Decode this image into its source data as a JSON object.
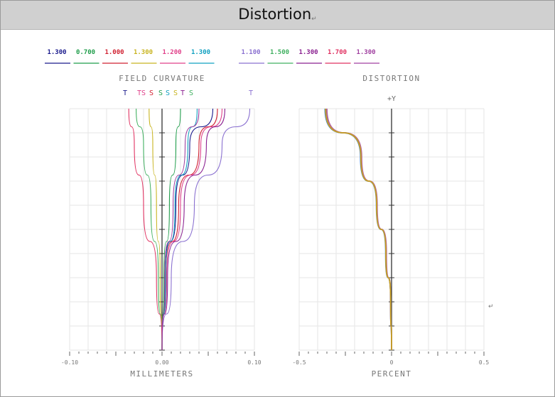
{
  "page": {
    "title": "Distortion",
    "para_mark": "↵"
  },
  "legend": [
    {
      "label": "1.300",
      "color": "#1a1a8c"
    },
    {
      "label": "0.700",
      "color": "#1f9d4a"
    },
    {
      "label": "1.000",
      "color": "#d02030"
    },
    {
      "label": "1.300",
      "color": "#c8b420"
    },
    {
      "label": "1.200",
      "color": "#e0408a"
    },
    {
      "label": "1.300",
      "color": "#10a0c0"
    },
    {
      "label": "1.100",
      "color": "#8a70d0"
    },
    {
      "label": "1.500",
      "color": "#40b060"
    },
    {
      "label": "1.300",
      "color": "#8a2090"
    },
    {
      "label": "1.700",
      "color": "#e03060"
    },
    {
      "label": "1.300",
      "color": "#a040a0"
    }
  ],
  "chart_data": [
    {
      "type": "line",
      "title": "FIELD CURVATURE",
      "subtitle_markers": [
        "T",
        "TS",
        "S",
        "S",
        "S",
        "S",
        "T",
        "S",
        "T"
      ],
      "xlabel": "MILLIMETERS",
      "ylabel": "",
      "xlim": [
        -0.1,
        0.1
      ],
      "ylim": [
        0,
        1
      ],
      "x_ticks": [
        "-0.10",
        "0.00",
        "0.10"
      ],
      "grid": true,
      "series": [
        {
          "color": "#1a1a8c",
          "points": [
            [
              0.0,
              0
            ],
            [
              0.003,
              0.3
            ],
            [
              0.015,
              0.6
            ],
            [
              0.03,
              0.85
            ],
            [
              0.055,
              1
            ]
          ]
        },
        {
          "color": "#1f9d4a",
          "points": [
            [
              0.0,
              0
            ],
            [
              0.002,
              0.3
            ],
            [
              0.008,
              0.6
            ],
            [
              0.015,
              0.85
            ],
            [
              0.02,
              1
            ]
          ]
        },
        {
          "color": "#d02030",
          "points": [
            [
              0.0,
              0
            ],
            [
              0.004,
              0.3
            ],
            [
              0.018,
              0.6
            ],
            [
              0.04,
              0.85
            ],
            [
              0.06,
              1
            ]
          ]
        },
        {
          "color": "#c8b420",
          "points": [
            [
              0.0,
              0
            ],
            [
              -0.002,
              0.3
            ],
            [
              -0.006,
              0.6
            ],
            [
              -0.01,
              0.85
            ],
            [
              -0.014,
              1
            ]
          ]
        },
        {
          "color": "#e0408a",
          "points": [
            [
              0.0,
              0
            ],
            [
              0.005,
              0.3
            ],
            [
              0.02,
              0.6
            ],
            [
              0.042,
              0.85
            ],
            [
              0.065,
              1
            ]
          ]
        },
        {
          "color": "#10a0c0",
          "points": [
            [
              0.0,
              0
            ],
            [
              0.004,
              0.3
            ],
            [
              0.014,
              0.6
            ],
            [
              0.028,
              0.85
            ],
            [
              0.038,
              1
            ]
          ]
        },
        {
          "color": "#8a70d0",
          "points": [
            [
              0.0,
              0
            ],
            [
              0.01,
              0.3
            ],
            [
              0.035,
              0.6
            ],
            [
              0.065,
              0.85
            ],
            [
              0.095,
              1
            ]
          ]
        },
        {
          "color": "#40b060",
          "points": [
            [
              0.0,
              0
            ],
            [
              -0.004,
              0.3
            ],
            [
              -0.012,
              0.6
            ],
            [
              -0.02,
              0.85
            ],
            [
              -0.028,
              1
            ]
          ]
        },
        {
          "color": "#8a2090",
          "points": [
            [
              0.0,
              0
            ],
            [
              0.006,
              0.3
            ],
            [
              0.024,
              0.6
            ],
            [
              0.048,
              0.85
            ],
            [
              0.068,
              1
            ]
          ]
        },
        {
          "color": "#e03060",
          "points": [
            [
              0.0,
              0
            ],
            [
              -0.006,
              0.3
            ],
            [
              -0.02,
              0.6
            ],
            [
              -0.03,
              0.85
            ],
            [
              -0.036,
              1
            ]
          ]
        },
        {
          "color": "#a040a0",
          "points": [
            [
              0.0,
              0
            ],
            [
              0.003,
              0.3
            ],
            [
              0.012,
              0.6
            ],
            [
              0.025,
              0.85
            ],
            [
              0.04,
              1
            ]
          ]
        }
      ]
    },
    {
      "type": "line",
      "title": "DISTORTION",
      "subtitle_markers": [
        "+Y"
      ],
      "xlabel": "PERCENT",
      "ylabel": "",
      "xlim": [
        -0.5,
        0.5
      ],
      "ylim": [
        0,
        1
      ],
      "x_ticks": [
        "-0.5",
        "0",
        "0.5"
      ],
      "grid": true,
      "series": [
        {
          "color": "#7a60c0",
          "points": [
            [
              0,
              0
            ],
            [
              -0.005,
              0.2
            ],
            [
              -0.03,
              0.4
            ],
            [
              -0.08,
              0.6
            ],
            [
              -0.165,
              0.8
            ],
            [
              -0.355,
              1
            ]
          ]
        },
        {
          "color": "#3a7fd0",
          "points": [
            [
              0,
              0
            ],
            [
              -0.005,
              0.2
            ],
            [
              -0.032,
              0.4
            ],
            [
              -0.082,
              0.6
            ],
            [
              -0.168,
              0.8
            ],
            [
              -0.36,
              1
            ]
          ]
        },
        {
          "color": "#b060a0",
          "points": [
            [
              0,
              0
            ],
            [
              -0.005,
              0.2
            ],
            [
              -0.028,
              0.4
            ],
            [
              -0.078,
              0.6
            ],
            [
              -0.162,
              0.8
            ],
            [
              -0.35,
              1
            ]
          ]
        },
        {
          "color": "#c8a020",
          "points": [
            [
              0,
              0
            ],
            [
              -0.005,
              0.2
            ],
            [
              -0.031,
              0.4
            ],
            [
              -0.081,
              0.6
            ],
            [
              -0.166,
              0.8
            ],
            [
              -0.357,
              1
            ]
          ]
        }
      ]
    }
  ]
}
